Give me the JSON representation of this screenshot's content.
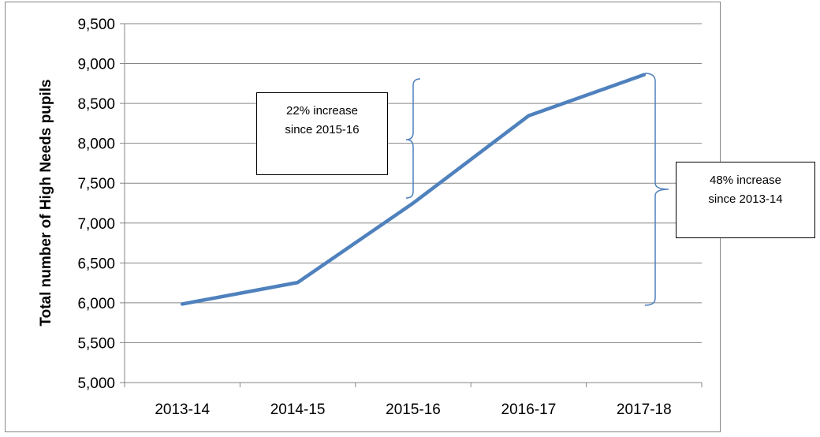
{
  "chart_data": {
    "type": "line",
    "categories": [
      "2013-14",
      "2014-15",
      "2015-16",
      "2016-17",
      "2017-18"
    ],
    "series": [
      {
        "values": [
          5985,
          6255,
          7250,
          8345,
          8860
        ],
        "color": "#4F81BD"
      }
    ],
    "ylabel": "Total number of High Needs pupils",
    "xlabel": "",
    "ylim": [
      5000,
      9500
    ],
    "yticks": [
      "5,000",
      "5,500",
      "6,000",
      "6,500",
      "7,000",
      "7,500",
      "8,000",
      "8,500",
      "9,000",
      "9,500"
    ],
    "grid": true,
    "annotations": [
      {
        "line1": "22% increase",
        "line2": "since 2015-16"
      },
      {
        "line1": "48% increase",
        "line2": "since 2013-14"
      }
    ]
  }
}
